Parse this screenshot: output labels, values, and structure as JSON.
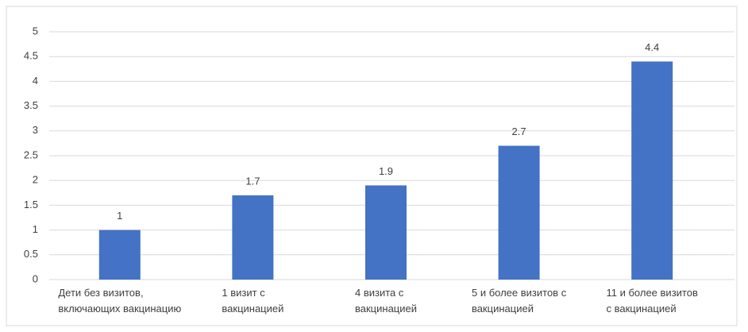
{
  "chart_data": {
    "type": "bar",
    "categories": [
      "Дети без визитов,\nвключающих вакцинацию",
      "1 визит с\nвакцинацией",
      "4 визита с\nвакцинацией",
      "5 и более визитов с\nвакцинацией",
      "11 и более визитов\nс вакцинацией"
    ],
    "values": [
      1,
      1.7,
      1.9,
      2.7,
      4.4
    ],
    "color": "#4472c4",
    "ylim": [
      0,
      5
    ],
    "yticks": [
      0,
      0.5,
      1,
      1.5,
      2,
      2.5,
      3,
      3.5,
      4,
      4.5,
      5
    ],
    "grid": true
  }
}
